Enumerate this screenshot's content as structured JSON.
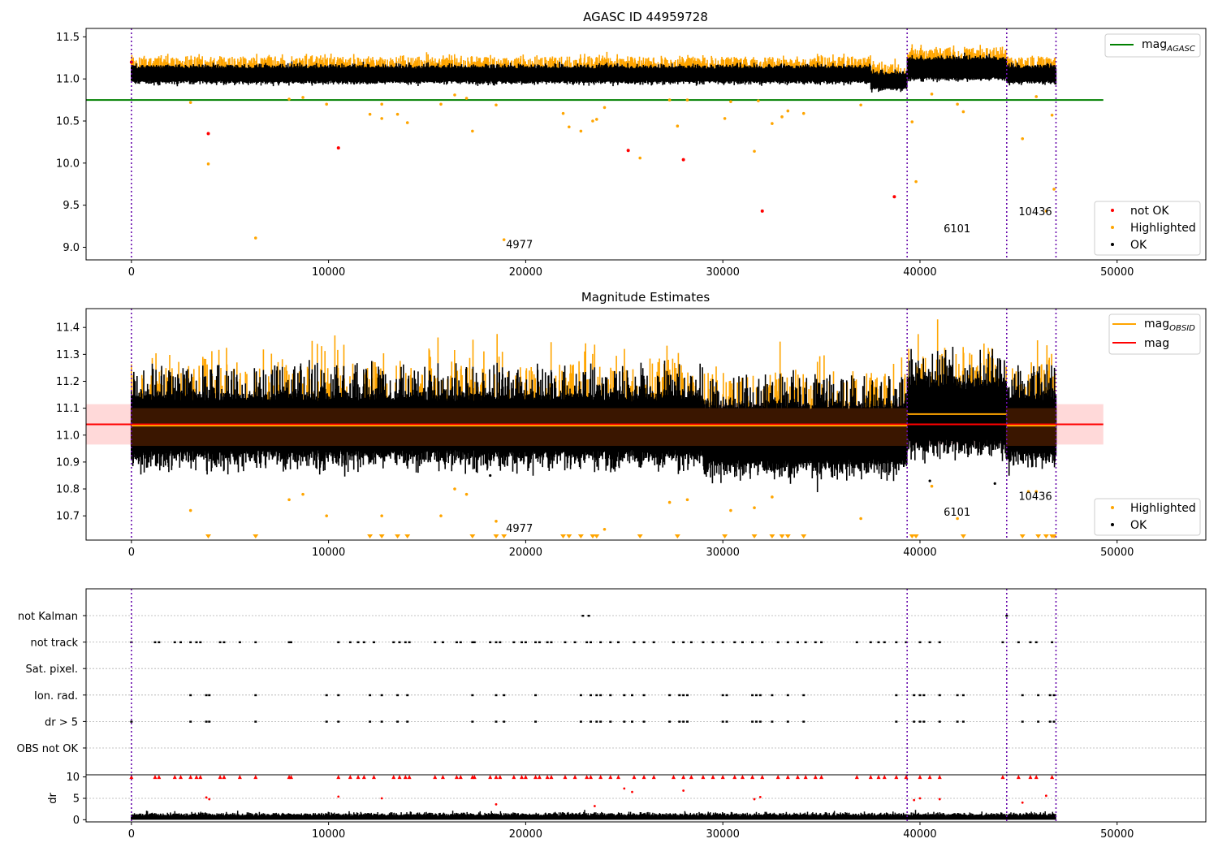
{
  "chart_data": [
    {
      "type": "scatter",
      "title": "AGASC ID 44959728",
      "xlim": [
        -2300,
        54500
      ],
      "ylim": [
        8.85,
        11.6
      ],
      "xticks": [
        0,
        10000,
        20000,
        30000,
        40000,
        50000
      ],
      "yticks": [
        9.0,
        9.5,
        10.0,
        10.5,
        11.0,
        11.5
      ],
      "ytick_labels": [
        "9.0",
        "9.5",
        "10.0",
        "10.5",
        "11.0",
        "11.5"
      ],
      "obsid_boundaries": [
        0,
        39350,
        44400,
        46900
      ],
      "obsid_labels": [
        {
          "x": 19000,
          "y": 8.99,
          "text": "4977"
        },
        {
          "x": 41200,
          "y": 9.18,
          "text": "6101"
        },
        {
          "x": 45000,
          "y": 9.38,
          "text": "10436"
        }
      ],
      "reference_line": {
        "name": "mag_AGASC",
        "y": 10.75,
        "x_range": [
          -2300,
          49300
        ],
        "color": "#008000"
      },
      "band": {
        "center": 11.05,
        "spread": 0.07
      },
      "series": [
        {
          "name": "not OK",
          "color": "#ff0000",
          "points": [
            [
              0,
              11.2
            ],
            [
              3900,
              10.35
            ],
            [
              10500,
              10.18
            ],
            [
              25200,
              10.15
            ],
            [
              28000,
              10.04
            ],
            [
              32000,
              9.43
            ],
            [
              38700,
              9.6
            ]
          ]
        },
        {
          "name": "Highlighted",
          "color": "#ffa500",
          "points": [
            [
              3000,
              10.72
            ],
            [
              3900,
              9.99
            ],
            [
              6300,
              9.11
            ],
            [
              8000,
              10.76
            ],
            [
              8700,
              10.78
            ],
            [
              9900,
              10.7
            ],
            [
              12100,
              10.58
            ],
            [
              12700,
              10.53
            ],
            [
              12700,
              10.7
            ],
            [
              13500,
              10.58
            ],
            [
              14000,
              10.48
            ],
            [
              15700,
              10.7
            ],
            [
              16400,
              10.81
            ],
            [
              17000,
              10.77
            ],
            [
              17300,
              10.38
            ],
            [
              18500,
              10.69
            ],
            [
              18900,
              9.09
            ],
            [
              21900,
              10.59
            ],
            [
              22200,
              10.43
            ],
            [
              22800,
              10.38
            ],
            [
              23400,
              10.5
            ],
            [
              23600,
              10.52
            ],
            [
              24000,
              10.66
            ],
            [
              25800,
              10.06
            ],
            [
              27300,
              10.75
            ],
            [
              27700,
              10.44
            ],
            [
              28200,
              10.75
            ],
            [
              30100,
              10.53
            ],
            [
              30400,
              10.73
            ],
            [
              31600,
              10.14
            ],
            [
              31800,
              10.74
            ],
            [
              32500,
              10.47
            ],
            [
              33000,
              10.55
            ],
            [
              33300,
              10.62
            ],
            [
              34100,
              10.59
            ],
            [
              37000,
              10.69
            ],
            [
              39600,
              10.49
            ],
            [
              39800,
              9.78
            ],
            [
              40600,
              10.82
            ],
            [
              41900,
              10.7
            ],
            [
              42200,
              10.61
            ],
            [
              45200,
              10.29
            ],
            [
              45900,
              10.79
            ],
            [
              46400,
              9.43
            ],
            [
              46700,
              10.57
            ],
            [
              46800,
              9.69
            ]
          ]
        },
        {
          "name": "OK",
          "color": "#000000",
          "points": []
        }
      ],
      "legend_upper": "top-right",
      "legend_lower": "bottom-right"
    },
    {
      "type": "scatter",
      "title": "Magnitude Estimates",
      "xlim": [
        -2300,
        54500
      ],
      "ylim": [
        10.61,
        11.47
      ],
      "xticks": [
        0,
        10000,
        20000,
        30000,
        40000,
        50000
      ],
      "yticks": [
        10.7,
        10.8,
        10.9,
        11.0,
        11.1,
        11.2,
        11.3,
        11.4
      ],
      "ytick_labels": [
        "10.7",
        "10.8",
        "10.9",
        "11.0",
        "11.1",
        "11.2",
        "11.3",
        "11.4"
      ],
      "obsid_boundaries": [
        0,
        39350,
        44400,
        46900
      ],
      "obsid_labels": [
        {
          "x": 19000,
          "y": 10.64,
          "text": "4977"
        },
        {
          "x": 41200,
          "y": 10.7,
          "text": "6101"
        },
        {
          "x": 45000,
          "y": 10.76,
          "text": "10436"
        }
      ],
      "mag_line": {
        "name": "mag",
        "y": 11.04,
        "band": [
          10.965,
          11.115
        ],
        "x_range": [
          -2300,
          49300
        ],
        "color": "#ff0000"
      },
      "mag_obsid": {
        "name": "mag_OBSID",
        "color": "#ffa500",
        "segments": [
          {
            "x": [
              0,
              39350
            ],
            "y": 11.035
          },
          {
            "x": [
              39350,
              44400
            ],
            "y": 11.078
          },
          {
            "x": [
              44400,
              46900
            ],
            "y": 11.035
          }
        ]
      },
      "series": [
        {
          "name": "Highlighted",
          "color": "#ffa500",
          "points": [
            [
              3000,
              10.72
            ],
            [
              8000,
              10.76
            ],
            [
              8700,
              10.78
            ],
            [
              9900,
              10.7
            ],
            [
              12700,
              10.7
            ],
            [
              15700,
              10.7
            ],
            [
              16400,
              10.8
            ],
            [
              17000,
              10.78
            ],
            [
              18500,
              10.68
            ],
            [
              24000,
              10.65
            ],
            [
              27300,
              10.75
            ],
            [
              28200,
              10.76
            ],
            [
              30400,
              10.72
            ],
            [
              31600,
              10.73
            ],
            [
              32500,
              10.77
            ],
            [
              37000,
              10.69
            ],
            [
              40600,
              10.81
            ],
            [
              41900,
              10.69
            ],
            [
              45500,
              10.79
            ],
            [
              45900,
              10.79
            ]
          ]
        },
        {
          "name": "OK",
          "color": "#000000",
          "points": [
            [
              7300,
              10.95
            ],
            [
              18200,
              10.85
            ],
            [
              40500,
              10.83
            ],
            [
              43800,
              10.82
            ]
          ]
        }
      ],
      "clipped_markers_x": [
        3900,
        6300,
        12100,
        12700,
        13500,
        14000,
        17300,
        18500,
        18900,
        21900,
        22200,
        22800,
        23400,
        23600,
        25800,
        27700,
        30100,
        31600,
        32500,
        33000,
        33300,
        34100,
        39600,
        39800,
        42200,
        45200,
        46000,
        46400,
        46700,
        46800
      ],
      "legend_upper": "top-right",
      "legend_lower": "bottom-right"
    },
    {
      "type": "scatter",
      "title": "",
      "xlim": [
        -2300,
        54500
      ],
      "categories": [
        "not Kalman",
        "not track",
        "Sat. pixel.",
        "Ion. rad.",
        "dr > 5",
        "OBS not OK"
      ],
      "obsid_boundaries": [
        0,
        39350,
        44400,
        46900
      ],
      "flags": {
        "not Kalman": [
          22900,
          23200,
          44400
        ],
        "not track": [
          0,
          1200,
          1400,
          2200,
          2500,
          3000,
          3300,
          3500,
          4500,
          4700,
          5500,
          6300,
          8000,
          8100,
          10500,
          11100,
          11500,
          11800,
          12300,
          13300,
          13600,
          13900,
          14100,
          15400,
          15800,
          16500,
          16700,
          17300,
          17400,
          18200,
          18500,
          18700,
          19400,
          19800,
          20000,
          20500,
          20700,
          21100,
          21300,
          22000,
          22500,
          23100,
          23300,
          23800,
          24300,
          24700,
          25500,
          26000,
          26500,
          27500,
          28000,
          28400,
          29000,
          29500,
          30000,
          30600,
          31000,
          31500,
          32000,
          32800,
          33300,
          33800,
          34200,
          34700,
          35000,
          36800,
          37500,
          37900,
          38200,
          38800,
          39300,
          40000,
          40500,
          41000,
          44200,
          45000,
          45600,
          45900,
          46700
        ],
        "Sat. pixel.": [],
        "Ion. rad.": [
          3000,
          3800,
          3950,
          6300,
          9900,
          10500,
          12100,
          12700,
          13500,
          14000,
          17300,
          18500,
          18900,
          20500,
          22800,
          23300,
          23600,
          23800,
          24300,
          25000,
          25400,
          26000,
          27300,
          27800,
          28000,
          28200,
          30000,
          30200,
          31500,
          31700,
          31900,
          32500,
          33300,
          34100,
          38800,
          39700,
          40000,
          40200,
          41000,
          41900,
          42200,
          45200,
          46000,
          46600,
          46800
        ],
        "dr > 5": [
          0,
          3000,
          3800,
          3950,
          6300,
          9900,
          10500,
          12100,
          12700,
          13500,
          14000,
          17300,
          18500,
          18900,
          20500,
          22800,
          23300,
          23600,
          23800,
          24300,
          25000,
          25400,
          26000,
          27300,
          27800,
          28000,
          28200,
          30000,
          30200,
          31500,
          31700,
          31900,
          32500,
          33300,
          34100,
          38800,
          39700,
          40000,
          40200,
          41000,
          41900,
          42200,
          45200,
          46000,
          46600,
          46800
        ],
        "OBS not OK": []
      },
      "flag_color": "#000000"
    },
    {
      "type": "scatter",
      "title": "",
      "ylabel": "dr",
      "xlim": [
        -2300,
        54500
      ],
      "ylim": [
        -0.5,
        10.5
      ],
      "xticks": [
        0,
        10000,
        20000,
        30000,
        40000,
        50000
      ],
      "yticks": [
        0,
        5,
        10
      ],
      "obsid_boundaries": [
        0,
        39350,
        44400,
        46900
      ],
      "clipped_at": 10,
      "clipped_x": [
        0,
        1200,
        1400,
        2200,
        2500,
        3000,
        3300,
        3500,
        4500,
        4700,
        5500,
        6300,
        8000,
        8100,
        10500,
        11100,
        11500,
        11800,
        12300,
        13300,
        13600,
        13900,
        14100,
        15400,
        15800,
        16500,
        16700,
        17300,
        17400,
        18200,
        18500,
        18700,
        19400,
        19800,
        20000,
        20500,
        20700,
        21100,
        21300,
        22000,
        22500,
        23100,
        23300,
        23800,
        24300,
        24700,
        25500,
        26000,
        26500,
        27500,
        28000,
        28400,
        29000,
        29500,
        30000,
        30600,
        31000,
        31500,
        32000,
        32800,
        33300,
        33800,
        34200,
        34700,
        35000,
        36800,
        37500,
        37900,
        38200,
        38800,
        39300,
        40000,
        40500,
        41000,
        44200,
        45000,
        45600,
        45900,
        46700
      ],
      "mid_points": [
        [
          3800,
          5.2
        ],
        [
          3950,
          4.8
        ],
        [
          10500,
          5.4
        ],
        [
          12700,
          5.0
        ],
        [
          18500,
          3.6
        ],
        [
          23500,
          3.2
        ],
        [
          25000,
          7.3
        ],
        [
          25400,
          6.5
        ],
        [
          28000,
          6.8
        ],
        [
          31600,
          4.8
        ],
        [
          31900,
          5.3
        ],
        [
          39700,
          4.6
        ],
        [
          40000,
          5.0
        ],
        [
          41000,
          4.8
        ],
        [
          45200,
          4.0
        ],
        [
          46400,
          5.6
        ]
      ]
    }
  ]
}
